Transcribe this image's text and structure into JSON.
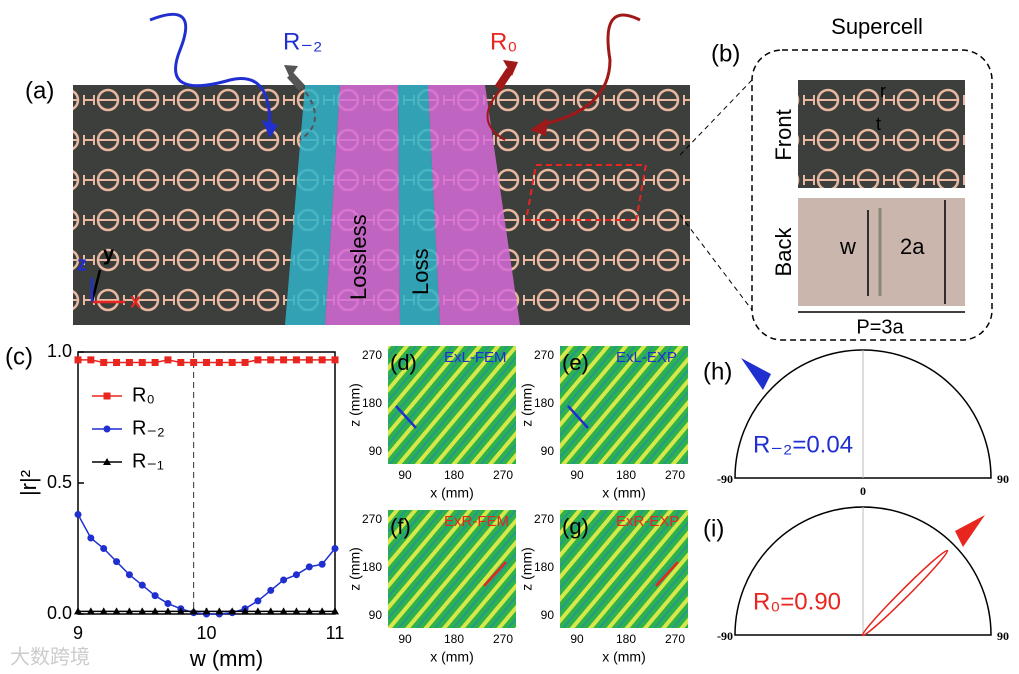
{
  "panel_a": {
    "label": "(a)",
    "beam_left": "R₋₂",
    "beam_right": "R₀",
    "stripe_1": "Lossless",
    "stripe_2": "Loss",
    "axis_x": "x",
    "axis_y": "y",
    "axis_z": "z"
  },
  "panel_b": {
    "label": "(b)",
    "title": "Supercell",
    "front": "Front",
    "back": "Back",
    "r": "r",
    "t": "t",
    "w": "w",
    "height": "2a",
    "period": "P=3a"
  },
  "panel_c_label": "(c)",
  "chart_data": {
    "type": "line",
    "x_label": "w (mm)",
    "y_label": "|r|²",
    "x": [
      9.0,
      9.1,
      9.2,
      9.3,
      9.4,
      9.5,
      9.6,
      9.7,
      9.8,
      9.9,
      10.0,
      10.1,
      10.2,
      10.3,
      10.4,
      10.5,
      10.6,
      10.7,
      10.8,
      10.9,
      11.0
    ],
    "series": [
      {
        "name": "R₀",
        "color": "#e8251f",
        "marker": "square",
        "values": [
          0.97,
          0.97,
          0.96,
          0.96,
          0.96,
          0.96,
          0.96,
          0.97,
          0.96,
          0.96,
          0.96,
          0.96,
          0.96,
          0.96,
          0.97,
          0.97,
          0.97,
          0.97,
          0.97,
          0.97,
          0.97
        ]
      },
      {
        "name": "R₋₂",
        "color": "#1f2fd0",
        "marker": "circle",
        "values": [
          0.38,
          0.29,
          0.25,
          0.2,
          0.15,
          0.11,
          0.07,
          0.04,
          0.02,
          0.005,
          0.0,
          0.0,
          0.005,
          0.02,
          0.05,
          0.09,
          0.13,
          0.15,
          0.18,
          0.19,
          0.25
        ]
      },
      {
        "name": "R₋₁",
        "color": "#000000",
        "marker": "triangle",
        "values": [
          0.01,
          0.01,
          0.01,
          0.01,
          0.01,
          0.01,
          0.01,
          0.01,
          0.01,
          0.01,
          0.01,
          0.01,
          0.01,
          0.01,
          0.01,
          0.01,
          0.01,
          0.01,
          0.01,
          0.01,
          0.01
        ]
      }
    ],
    "xlim": [
      9,
      11
    ],
    "xticks": [
      9,
      10,
      11
    ],
    "ylim": [
      0,
      1
    ],
    "yticks": [
      {
        "value": 0,
        "label": "0.0"
      },
      {
        "value": 0.5,
        "label": "0.5"
      },
      {
        "value": 1,
        "label": "1.0"
      }
    ],
    "reference_x": 9.9,
    "legend": "upper left"
  },
  "field_maps": [
    {
      "label": "(d)",
      "title": "ExL-FEM",
      "title_color": "#1f2fd0",
      "zticks": [
        270,
        180,
        90
      ],
      "xticks": [
        90,
        180,
        270
      ],
      "z_label": "z (mm)",
      "x_label": "x (mm)"
    },
    {
      "label": "(e)",
      "title": "ExL-EXP",
      "title_color": "#1f2fd0",
      "zticks": [
        270,
        180,
        90
      ],
      "xticks": [
        90,
        180,
        270
      ],
      "z_label": "z (mm)",
      "x_label": "x (mm)"
    },
    {
      "label": "(f)",
      "title": "ExR-FEM",
      "title_color": "#e8251f",
      "zticks": [
        270,
        180,
        90
      ],
      "xticks": [
        90,
        180,
        270
      ],
      "z_label": "z (mm)",
      "x_label": "x (mm)"
    },
    {
      "label": "(g)",
      "title": "ExR-EXP",
      "title_color": "#e8251f",
      "zticks": [
        270,
        180,
        90
      ],
      "xticks": [
        90,
        180,
        270
      ],
      "z_label": "z (mm)",
      "x_label": "x (mm)"
    }
  ],
  "polar": [
    {
      "label": "(h)",
      "text": "R₋₂=0.04",
      "color": "#1f2fd0",
      "left": "-90",
      "right": "90",
      "center": "0"
    },
    {
      "label": "(i)",
      "text": "R₀=0.90",
      "color": "#e8251f",
      "left": "-90",
      "right": "90"
    }
  ],
  "watermark": "大数跨境"
}
